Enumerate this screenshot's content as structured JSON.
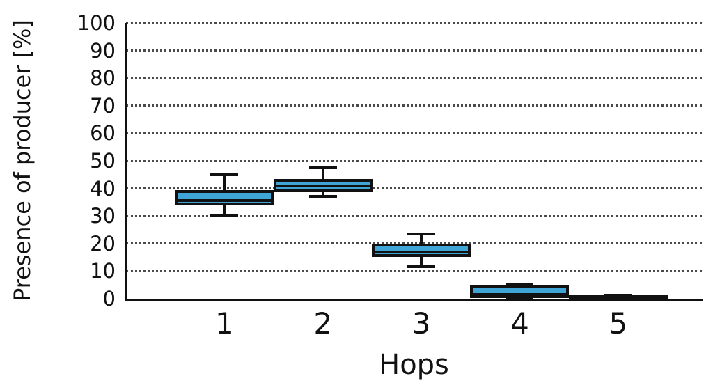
{
  "chart_data": {
    "type": "boxplot",
    "title": "",
    "xlabel": "Hops",
    "ylabel": "Presence of producer [%]",
    "categories": [
      "1",
      "2",
      "3",
      "4",
      "5"
    ],
    "ylim": [
      0,
      100
    ],
    "xlim_units": [
      0,
      5.85
    ],
    "yticks": [
      0,
      10,
      20,
      30,
      40,
      50,
      60,
      70,
      80,
      90,
      100
    ],
    "grid": "horizontal dotted",
    "legend": "none",
    "colors": {
      "box_fill": "#3fa5d6",
      "box_edge": "#111111",
      "whisker": "#111111",
      "median": "#111111",
      "grid": "#4a4a4a",
      "background": "#ffffff"
    },
    "series": [
      {
        "category": "1",
        "whisker_low": 30,
        "q1": 34.5,
        "median": 35.5,
        "q3": 39,
        "whisker_high": 45
      },
      {
        "category": "2",
        "whisker_low": 37,
        "q1": 39.5,
        "median": 41,
        "q3": 43,
        "whisker_high": 47.5
      },
      {
        "category": "3",
        "whisker_low": 11.5,
        "q1": 16,
        "median": 17,
        "q3": 19.5,
        "whisker_high": 23.5
      },
      {
        "category": "4",
        "whisker_low": 0.3,
        "q1": 1,
        "median": 1.5,
        "q3": 4.3,
        "whisker_high": 5.2
      },
      {
        "category": "5",
        "whisker_low": 0,
        "q1": 0.2,
        "median": 0.5,
        "q3": 0.9,
        "whisker_high": 1.3
      }
    ]
  }
}
